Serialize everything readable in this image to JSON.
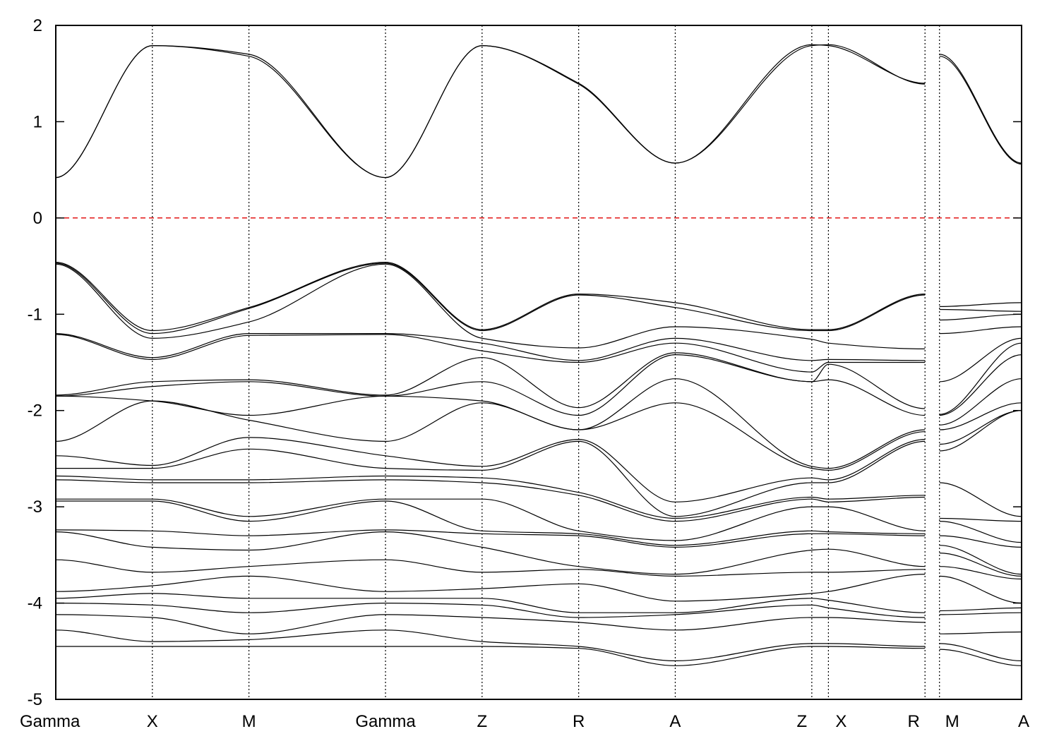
{
  "chart_data": {
    "type": "line",
    "title": "",
    "xlabel": "",
    "ylabel": "",
    "ylim": [
      -5,
      2
    ],
    "yticks": [
      {
        "value": 2,
        "label": "2"
      },
      {
        "value": 1,
        "label": "1"
      },
      {
        "value": 0,
        "label": "0"
      },
      {
        "value": -1,
        "label": "-1"
      },
      {
        "value": -2,
        "label": "-2"
      },
      {
        "value": -3,
        "label": "-3"
      },
      {
        "value": -4,
        "label": "-4"
      },
      {
        "value": -5,
        "label": "-5"
      }
    ],
    "xlim": [
      0,
      10
    ],
    "kpoints": [
      {
        "x": 0,
        "label": "Gamma"
      },
      {
        "x": 1,
        "label": "X"
      },
      {
        "x": 2,
        "label": "M"
      },
      {
        "x": 3.414,
        "label": "Gamma"
      },
      {
        "x": 4.414,
        "label": "Z"
      },
      {
        "x": 5.414,
        "label": "R"
      },
      {
        "x": 6.414,
        "label": "A"
      },
      {
        "x": 7.828,
        "label": "Z"
      },
      {
        "x": 8.0,
        "label": "X"
      },
      {
        "x": 9.0,
        "label": "R"
      },
      {
        "x": 9.15,
        "label": "M"
      },
      {
        "x": 10,
        "label": "A"
      }
    ],
    "path_breaks": [
      9.0
    ],
    "fermi_level": 0,
    "grid": false,
    "legend": "none",
    "series": [
      {
        "x": [
          0,
          1,
          2,
          3.414,
          4.414,
          5.414,
          6.414,
          7.828,
          8.0,
          9.0,
          9.15,
          10
        ],
        "y": [
          0.42,
          1.79,
          1.7,
          0.42,
          1.79,
          1.4,
          0.57,
          1.79,
          1.8,
          1.39,
          1.7,
          0.57
        ]
      },
      {
        "x": [
          0,
          1,
          2,
          3.414,
          4.414,
          5.414,
          6.414,
          7.828,
          8.0,
          9.0,
          9.15,
          10
        ],
        "y": [
          0.42,
          1.79,
          1.68,
          0.42,
          1.79,
          1.39,
          0.57,
          1.8,
          1.79,
          1.4,
          1.68,
          0.56
        ]
      },
      {
        "x": [
          0,
          1,
          2,
          3.414,
          4.414,
          5.414,
          6.414,
          7.828,
          8.0,
          9.0,
          9.15,
          10
        ],
        "y": [
          -0.46,
          -1.17,
          -0.93,
          -0.46,
          -1.16,
          -0.79,
          -0.88,
          -1.16,
          -1.16,
          -0.79,
          -0.92,
          -0.88
        ]
      },
      {
        "x": [
          0,
          1,
          2,
          3.414,
          4.414,
          5.414,
          6.414,
          7.828,
          8.0,
          9.0,
          9.15,
          10
        ],
        "y": [
          -0.47,
          -1.2,
          -0.94,
          -0.47,
          -1.17,
          -0.8,
          -0.93,
          -1.17,
          -1.17,
          -0.8,
          -0.95,
          -0.97
        ]
      },
      {
        "x": [
          0,
          1,
          2,
          3.414,
          4.414,
          5.414,
          6.414,
          7.828,
          8.0,
          9.0,
          9.15,
          10
        ],
        "y": [
          -0.48,
          -1.25,
          -1.08,
          -0.48,
          -1.25,
          -1.35,
          -1.13,
          -1.26,
          -1.3,
          -1.36,
          -1.06,
          -1.0
        ]
      },
      {
        "x": [
          0,
          1,
          2,
          3.414,
          4.414,
          5.414,
          6.414,
          7.828,
          8.0,
          9.0,
          9.15,
          10
        ],
        "y": [
          -1.2,
          -1.45,
          -1.2,
          -1.2,
          -1.3,
          -1.48,
          -1.25,
          -1.48,
          -1.47,
          -1.48,
          -1.2,
          -1.13
        ]
      },
      {
        "x": [
          0,
          1,
          2,
          3.414,
          4.414,
          5.414,
          6.414,
          7.828,
          8.0,
          9.0,
          9.15,
          10
        ],
        "y": [
          -1.21,
          -1.47,
          -1.22,
          -1.21,
          -1.38,
          -1.5,
          -1.3,
          -1.6,
          -1.5,
          -1.5,
          -1.7,
          -1.25
        ]
      },
      {
        "x": [
          0,
          1,
          2,
          3.414,
          4.414,
          5.414,
          6.414,
          7.828,
          8.0,
          9.0,
          9.15,
          10
        ],
        "y": [
          -1.84,
          -1.7,
          -1.68,
          -1.84,
          -1.45,
          -1.97,
          -1.4,
          -1.7,
          -1.52,
          -1.98,
          -2.04,
          -1.3
        ]
      },
      {
        "x": [
          0,
          1,
          2,
          3.414,
          4.414,
          5.414,
          6.414,
          7.828,
          8.0,
          9.0,
          9.15,
          10
        ],
        "y": [
          -1.85,
          -1.75,
          -1.7,
          -1.85,
          -1.7,
          -2.05,
          -1.42,
          -1.7,
          -1.68,
          -2.05,
          -2.05,
          -1.42
        ]
      },
      {
        "x": [
          0,
          1,
          2,
          3.414,
          4.414,
          5.414,
          6.414,
          7.828,
          8.0,
          9.0,
          9.15,
          10
        ],
        "y": [
          -1.85,
          -1.9,
          -2.05,
          -1.85,
          -1.9,
          -2.2,
          -1.67,
          -2.58,
          -2.6,
          -2.2,
          -2.15,
          -1.67
        ]
      },
      {
        "x": [
          0,
          1,
          2,
          3.414,
          4.414,
          5.414,
          6.414,
          7.828,
          8.0,
          9.0,
          9.15,
          10
        ],
        "y": [
          -2.32,
          -1.9,
          -2.1,
          -2.32,
          -1.92,
          -2.2,
          -1.92,
          -2.6,
          -2.62,
          -2.22,
          -2.2,
          -1.92
        ]
      },
      {
        "x": [
          0,
          1,
          2,
          3.414,
          4.414,
          5.414,
          6.414,
          7.828,
          8.0,
          9.0,
          9.15,
          10
        ],
        "y": [
          -2.47,
          -2.57,
          -2.28,
          -2.47,
          -2.58,
          -2.3,
          -2.95,
          -2.7,
          -2.72,
          -2.3,
          -2.35,
          -2.0
        ]
      },
      {
        "x": [
          0,
          1,
          2,
          3.414,
          4.414,
          5.414,
          6.414,
          7.828,
          8.0,
          9.0,
          9.15,
          10
        ],
        "y": [
          -2.6,
          -2.6,
          -2.4,
          -2.6,
          -2.62,
          -2.32,
          -3.1,
          -2.75,
          -2.75,
          -2.32,
          -2.42,
          -2.0
        ]
      },
      {
        "x": [
          0,
          1,
          2,
          3.414,
          4.414,
          5.414,
          6.414,
          7.828,
          8.0,
          9.0,
          9.15,
          10
        ],
        "y": [
          -2.68,
          -2.72,
          -2.72,
          -2.68,
          -2.7,
          -2.85,
          -3.12,
          -2.9,
          -2.92,
          -2.88,
          -2.75,
          -3.1
        ]
      },
      {
        "x": [
          0,
          1,
          2,
          3.414,
          4.414,
          5.414,
          6.414,
          7.828,
          8.0,
          9.0,
          9.15,
          10
        ],
        "y": [
          -2.72,
          -2.75,
          -2.75,
          -2.72,
          -2.75,
          -2.88,
          -3.15,
          -2.92,
          -2.95,
          -2.9,
          -3.12,
          -3.15
        ]
      },
      {
        "x": [
          0,
          1,
          2,
          3.414,
          4.414,
          5.414,
          6.414,
          7.828,
          8.0,
          9.0,
          9.15,
          10
        ],
        "y": [
          -2.92,
          -2.92,
          -3.1,
          -2.92,
          -2.92,
          -3.25,
          -3.35,
          -3.0,
          -3.0,
          -3.25,
          -3.15,
          -3.37
        ]
      },
      {
        "x": [
          0,
          1,
          2,
          3.414,
          4.414,
          5.414,
          6.414,
          7.828,
          8.0,
          9.0,
          9.15,
          10
        ],
        "y": [
          -2.94,
          -2.94,
          -3.15,
          -2.94,
          -3.25,
          -3.28,
          -3.4,
          -3.25,
          -3.26,
          -3.28,
          -3.3,
          -3.42
        ]
      },
      {
        "x": [
          0,
          1,
          2,
          3.414,
          4.414,
          5.414,
          6.414,
          7.828,
          8.0,
          9.0,
          9.15,
          10
        ],
        "y": [
          -3.24,
          -3.25,
          -3.3,
          -3.24,
          -3.28,
          -3.3,
          -3.42,
          -3.28,
          -3.28,
          -3.3,
          -3.4,
          -3.7
        ]
      },
      {
        "x": [
          0,
          1,
          2,
          3.414,
          4.414,
          5.414,
          6.414,
          7.828,
          8.0,
          9.0,
          9.15,
          10
        ],
        "y": [
          -3.26,
          -3.42,
          -3.45,
          -3.26,
          -3.42,
          -3.62,
          -3.7,
          -3.45,
          -3.44,
          -3.62,
          -3.48,
          -3.72
        ]
      },
      {
        "x": [
          0,
          1,
          2,
          3.414,
          4.414,
          5.414,
          6.414,
          7.828,
          8.0,
          9.0,
          9.15,
          10
        ],
        "y": [
          -3.55,
          -3.68,
          -3.62,
          -3.55,
          -3.68,
          -3.65,
          -3.72,
          -3.68,
          -3.68,
          -3.65,
          -3.62,
          -3.75
        ]
      },
      {
        "x": [
          0,
          1,
          2,
          3.414,
          4.414,
          5.414,
          6.414,
          7.828,
          8.0,
          9.0,
          9.15,
          10
        ],
        "y": [
          -3.88,
          -3.82,
          -3.72,
          -3.88,
          -3.85,
          -3.8,
          -3.98,
          -3.9,
          -3.88,
          -3.7,
          -3.72,
          -4.0
        ]
      },
      {
        "x": [
          0,
          1,
          2,
          3.414,
          4.414,
          5.414,
          6.414,
          7.828,
          8.0,
          9.0,
          9.15,
          10
        ],
        "y": [
          -3.95,
          -3.9,
          -3.95,
          -3.95,
          -3.95,
          -4.1,
          -4.1,
          -3.95,
          -3.97,
          -4.1,
          -4.08,
          -4.05
        ]
      },
      {
        "x": [
          0,
          1,
          2,
          3.414,
          4.414,
          5.414,
          6.414,
          7.828,
          8.0,
          9.0,
          9.15,
          10
        ],
        "y": [
          -4.0,
          -4.02,
          -4.1,
          -4.0,
          -4.02,
          -4.15,
          -4.12,
          -4.02,
          -4.05,
          -4.15,
          -4.12,
          -4.1
        ]
      },
      {
        "x": [
          0,
          1,
          2,
          3.414,
          4.414,
          5.414,
          6.414,
          7.828,
          8.0,
          9.0,
          9.15,
          10
        ],
        "y": [
          -4.12,
          -4.15,
          -4.32,
          -4.12,
          -4.15,
          -4.2,
          -4.28,
          -4.15,
          -4.15,
          -4.2,
          -4.32,
          -4.3
        ]
      },
      {
        "x": [
          0,
          1,
          2,
          3.414,
          4.414,
          5.414,
          6.414,
          7.828,
          8.0,
          9.0,
          9.15,
          10
        ],
        "y": [
          -4.28,
          -4.4,
          -4.38,
          -4.28,
          -4.4,
          -4.45,
          -4.6,
          -4.42,
          -4.42,
          -4.45,
          -4.42,
          -4.6
        ]
      },
      {
        "x": [
          0,
          1,
          2,
          3.414,
          4.414,
          5.414,
          6.414,
          7.828,
          8.0,
          9.0,
          9.15,
          10
        ],
        "y": [
          -4.45,
          -4.45,
          -4.45,
          -4.45,
          -4.45,
          -4.47,
          -4.65,
          -4.45,
          -4.45,
          -4.47,
          -4.48,
          -4.65
        ]
      }
    ]
  }
}
